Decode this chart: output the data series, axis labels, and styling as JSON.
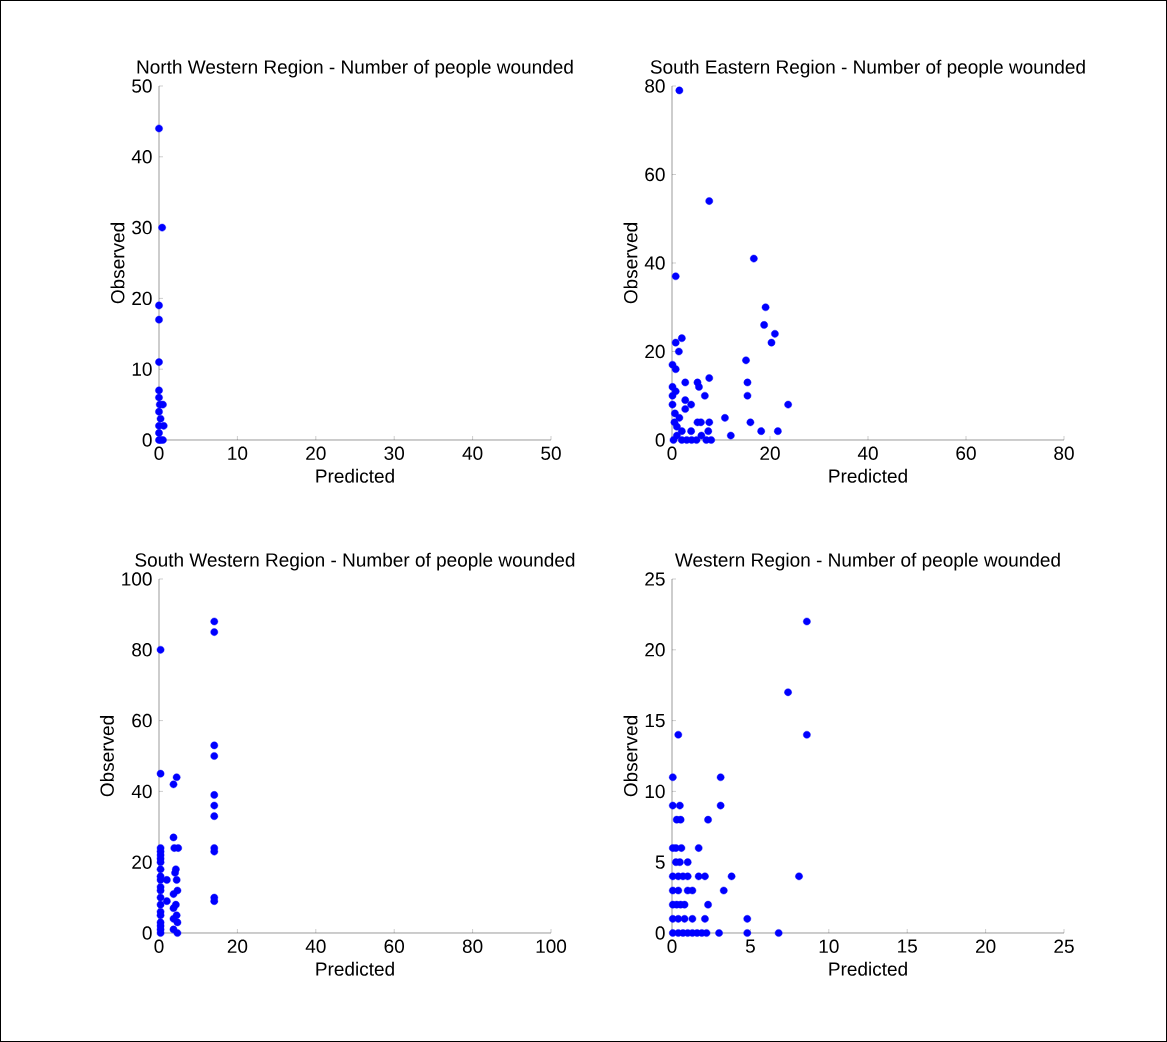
{
  "chart_data": [
    {
      "type": "scatter",
      "title": "North Western Region - Number of people wounded",
      "xlabel": "Predicted",
      "ylabel": "Observed",
      "color": "#0000ff",
      "x": [
        0,
        0.4,
        0,
        0,
        0,
        0,
        0,
        0.1,
        0.5,
        0,
        0.2,
        0,
        0.6,
        0.3,
        0,
        0.2,
        0.5,
        0
      ],
      "values": [
        44,
        30,
        19,
        17,
        11,
        7,
        6,
        5,
        5,
        4,
        3,
        2,
        2,
        null,
        1,
        0,
        0,
        0
      ],
      "xlim": [
        0,
        50
      ],
      "ylim": [
        0,
        50
      ],
      "xticks": [
        0,
        10,
        20,
        30,
        40,
        50
      ],
      "yticks": [
        0,
        10,
        20,
        30,
        40,
        50
      ]
    },
    {
      "type": "scatter",
      "title": "South Eastern Region - Number of people wounded",
      "xlabel": "Predicted",
      "ylabel": "Observed",
      "color": "#0000ff",
      "x": [
        1.5,
        7.6,
        16.7,
        0.75,
        19.1,
        18.8,
        21,
        20.3,
        2.0,
        0.75,
        1.4,
        15.1,
        0.1,
        0.75,
        15.4,
        7.6,
        2.7,
        5.2,
        5.5,
        0.1,
        0.75,
        6.7,
        15.4,
        2.7,
        3.9,
        2.7,
        23.7,
        0.1,
        0.1,
        0.6,
        10.8,
        5.2,
        5.9,
        7.6,
        16,
        18.2,
        21.6,
        12,
        3.9,
        7.4,
        0.3,
        1,
        2,
        3,
        4,
        5,
        6,
        7,
        8,
        0.5,
        1,
        2,
        1.5
      ],
      "values": [
        79,
        54,
        41,
        37,
        30,
        26,
        24,
        22,
        23,
        22,
        20,
        18,
        17,
        16,
        13,
        14,
        13,
        13,
        12,
        12,
        11,
        10,
        10,
        9,
        8,
        7,
        8,
        10,
        8,
        6,
        5,
        4,
        4,
        4,
        4,
        2,
        2,
        1,
        2,
        2,
        0,
        1,
        2,
        0,
        0,
        0,
        1,
        0,
        0,
        4,
        3,
        0,
        5
      ],
      "xlim": [
        0,
        80
      ],
      "ylim": [
        0,
        80
      ],
      "xticks": [
        0,
        20,
        40,
        60,
        80
      ],
      "yticks": [
        0,
        20,
        40,
        60,
        80
      ]
    },
    {
      "type": "scatter",
      "title": "South Western Region - Number of people wounded",
      "xlabel": "Predicted",
      "ylabel": "Observed",
      "color": "#0000ff",
      "x": [
        14.1,
        14.1,
        14.1,
        14.1,
        14.1,
        14.1,
        14.1,
        14.1,
        14.1,
        14.1,
        14.1,
        0.4,
        0.4,
        0.4,
        0.4,
        0.4,
        0.4,
        0.4,
        0.4,
        0.4,
        0.4,
        0.4,
        0.4,
        0.4,
        0.4,
        0.4,
        0.4,
        0.4,
        0.4,
        0.4,
        0.4,
        2,
        2,
        3.7,
        4.5,
        3.7,
        3.9,
        4.9,
        4.3,
        4.1,
        4.5,
        3.7,
        4.7,
        4.3,
        3.7,
        4.5,
        3.7,
        4.7,
        3.7,
        4.7
      ],
      "values": [
        88,
        85,
        53,
        50,
        39,
        36,
        33,
        24,
        23,
        10,
        9,
        80,
        45,
        24,
        23,
        22,
        21,
        20,
        18,
        16,
        15,
        13,
        12,
        10,
        8,
        6,
        5,
        3,
        2,
        1,
        0,
        15,
        9,
        42,
        44,
        27,
        24,
        24,
        18,
        17,
        15,
        11,
        12,
        8,
        7,
        5,
        4,
        3,
        1,
        0
      ],
      "xlim": [
        0,
        100
      ],
      "ylim": [
        0,
        100
      ],
      "xticks": [
        0,
        20,
        40,
        60,
        80,
        100
      ],
      "yticks": [
        0,
        20,
        40,
        60,
        80,
        100
      ]
    },
    {
      "type": "scatter",
      "title": "Western Region - Number of people wounded",
      "xlabel": "Predicted",
      "ylabel": "Observed",
      "color": "#0000ff",
      "x": [
        8.6,
        7.4,
        0.4,
        8.6,
        3.1,
        0.05,
        0.05,
        0.5,
        3.1,
        0.3,
        0.55,
        2.3,
        0.05,
        0.25,
        0.6,
        1.7,
        0.25,
        0.5,
        1.0,
        0.05,
        0.4,
        0.7,
        1.0,
        1.7,
        2.1,
        3.8,
        8.1,
        0.05,
        0.4,
        1.0,
        1.3,
        3.3,
        0.05,
        0.3,
        0.55,
        0.8,
        2.3,
        0.05,
        0.4,
        0.8,
        1.3,
        2.1,
        4.8,
        0.05,
        0.4,
        0.7,
        1.0,
        1.3,
        1.6,
        1.9,
        2.2,
        3.0,
        4.8,
        6.8
      ],
      "values": [
        22,
        17,
        14,
        14,
        11,
        11,
        9,
        9,
        9,
        8,
        8,
        8,
        6,
        6,
        6,
        6,
        5,
        5,
        5,
        4,
        4,
        4,
        4,
        4,
        4,
        4,
        4,
        3,
        3,
        3,
        3,
        3,
        2,
        2,
        2,
        2,
        2,
        1,
        1,
        1,
        1,
        1,
        1,
        0,
        0,
        0,
        0,
        0,
        0,
        0,
        0,
        0,
        0,
        0
      ],
      "xlim": [
        0,
        25
      ],
      "ylim": [
        0,
        25
      ],
      "xticks": [
        0,
        5,
        10,
        15,
        20,
        25
      ],
      "yticks": [
        0,
        5,
        10,
        15,
        20,
        25
      ]
    }
  ]
}
